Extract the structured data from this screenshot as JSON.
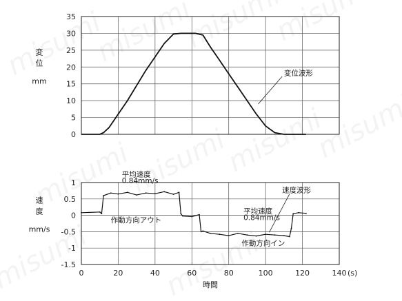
{
  "watermark": "misumi",
  "chart_data": [
    {
      "type": "line",
      "panel": "top",
      "ylabel": [
        "変",
        "位",
        "mm"
      ],
      "xlim": [
        0,
        140
      ],
      "ylim": [
        0,
        35
      ],
      "yticks": [
        0,
        5,
        10,
        15,
        20,
        25,
        30,
        35
      ],
      "grid": true,
      "annotations": [
        {
          "text": "変位波形",
          "x": 110,
          "y": 17.5
        }
      ],
      "series": [
        {
          "x": [
            0,
            10,
            12,
            15,
            20,
            25,
            30,
            35,
            40,
            45,
            50,
            54,
            58,
            62,
            66,
            70,
            75,
            80,
            85,
            90,
            95,
            100,
            105,
            110,
            114,
            116,
            118,
            122
          ],
          "y": [
            0,
            0,
            0.5,
            2,
            6,
            10,
            14.5,
            19,
            23,
            27,
            29.8,
            30,
            30,
            30,
            29.5,
            26,
            22,
            18,
            14,
            10,
            6,
            2.5,
            0.5,
            0,
            0,
            0,
            0,
            0
          ]
        }
      ]
    },
    {
      "type": "line",
      "panel": "bottom",
      "ylabel": [
        "速",
        "度",
        "mm/s"
      ],
      "xlabel": "時間",
      "xunit": "(s)",
      "xlim": [
        0,
        140
      ],
      "ylim": [
        -1.5,
        1
      ],
      "xticks": [
        0,
        20,
        40,
        60,
        80,
        100,
        120,
        140
      ],
      "yticks": [
        1,
        0.5,
        0,
        -0.5,
        -1,
        -1.5
      ],
      "yticklabels": [
        "1",
        "0.5",
        "0",
        "-0.5",
        "-1",
        "-1.5"
      ],
      "grid": true,
      "annotations": [
        {
          "text": "平均速度",
          "x": 22,
          "y": 1.18
        },
        {
          "text": "0.84mm/s",
          "x": 22,
          "y": 0.98
        },
        {
          "text": "作動方向アウト",
          "x": 16,
          "y": -0.22
        },
        {
          "text": "平均速度",
          "x": 88,
          "y": 0.05
        },
        {
          "text": "0.84mm/s",
          "x": 88,
          "y": -0.15
        },
        {
          "text": "速度波形",
          "x": 109,
          "y": 0.7
        },
        {
          "text": "作動方向イン",
          "x": 87,
          "y": -0.92
        }
      ],
      "series": [
        {
          "x": [
            0,
            10,
            11,
            12,
            16,
            20,
            25,
            30,
            35,
            40,
            45,
            50,
            53,
            54,
            55,
            60,
            64,
            65,
            66,
            70,
            75,
            80,
            85,
            90,
            95,
            100,
            105,
            110,
            113,
            114,
            115,
            118,
            122
          ],
          "y": [
            0.08,
            0.1,
            0.05,
            0.6,
            0.68,
            0.65,
            0.7,
            0.62,
            0.68,
            0.66,
            0.72,
            0.64,
            0.7,
            0.05,
            -0.02,
            -0.04,
            0.02,
            -0.5,
            -0.48,
            -0.55,
            -0.58,
            -0.62,
            -0.55,
            -0.6,
            -0.63,
            -0.58,
            -0.6,
            -0.62,
            -0.65,
            -0.4,
            0.05,
            0.08,
            0.06
          ]
        }
      ]
    }
  ]
}
